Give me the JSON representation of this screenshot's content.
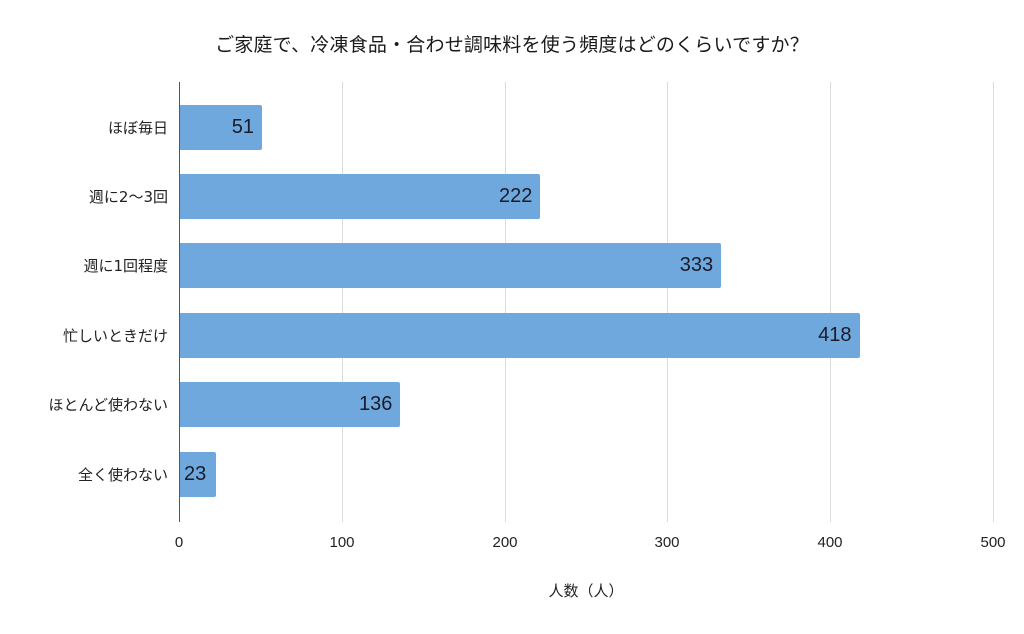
{
  "chart_data": {
    "type": "bar",
    "orientation": "horizontal",
    "title": "ご家庭で、冷凍食品・合わせ調味料を使う頻度はどのくらいですか？",
    "xlabel": "人数（人）",
    "ylabel": "",
    "categories": [
      "ほぼ毎日",
      "週に2〜3回",
      "週に1回程度",
      "忙しいときだけ",
      "ほとんど使わない",
      "全く使わない"
    ],
    "values": [
      51,
      222,
      333,
      418,
      136,
      23
    ],
    "xlim": [
      0,
      500
    ],
    "xticks": [
      "0",
      "100",
      "200",
      "300",
      "400",
      "500"
    ],
    "grid": true,
    "legend": null,
    "bar_color": "#6fa8dc",
    "data_labels": true
  }
}
